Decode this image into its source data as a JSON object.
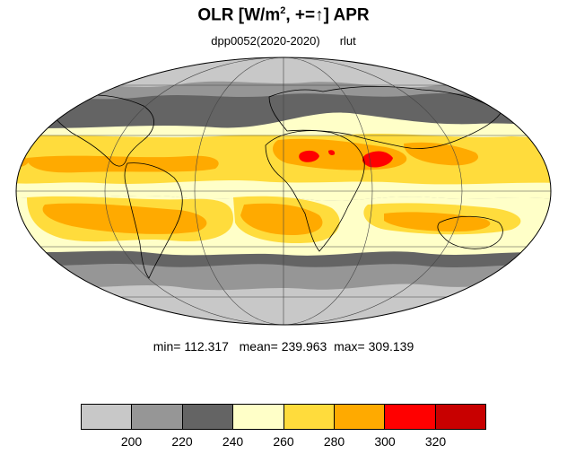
{
  "title": {
    "main": "OLR [W/m",
    "sup": "2",
    "rest": ", +=↑] APR"
  },
  "subtitle": {
    "left": "dpp0052(2020-2020)",
    "right": "rlut"
  },
  "stats": {
    "min_label": "min=",
    "min": "112.317",
    "mean_label": "mean=",
    "mean": "239.963",
    "max_label": "max=",
    "max": "309.139"
  },
  "colorbar": {
    "colors": [
      "#c8c8c8",
      "#969696",
      "#646464",
      "#ffffc8",
      "#ffdc3c",
      "#ffaa00",
      "#ff0000",
      "#c80000"
    ],
    "ticks": [
      "200",
      "220",
      "240",
      "260",
      "280",
      "300",
      "320"
    ]
  },
  "map_colors": {
    "background": "#969696",
    "high_lat": "#c8c8c8",
    "dark": "#646464",
    "pale": "#ffffc8",
    "yellow": "#ffdc3c",
    "orange": "#ffaa00",
    "red": "#ff0000",
    "darkred": "#c80000"
  }
}
